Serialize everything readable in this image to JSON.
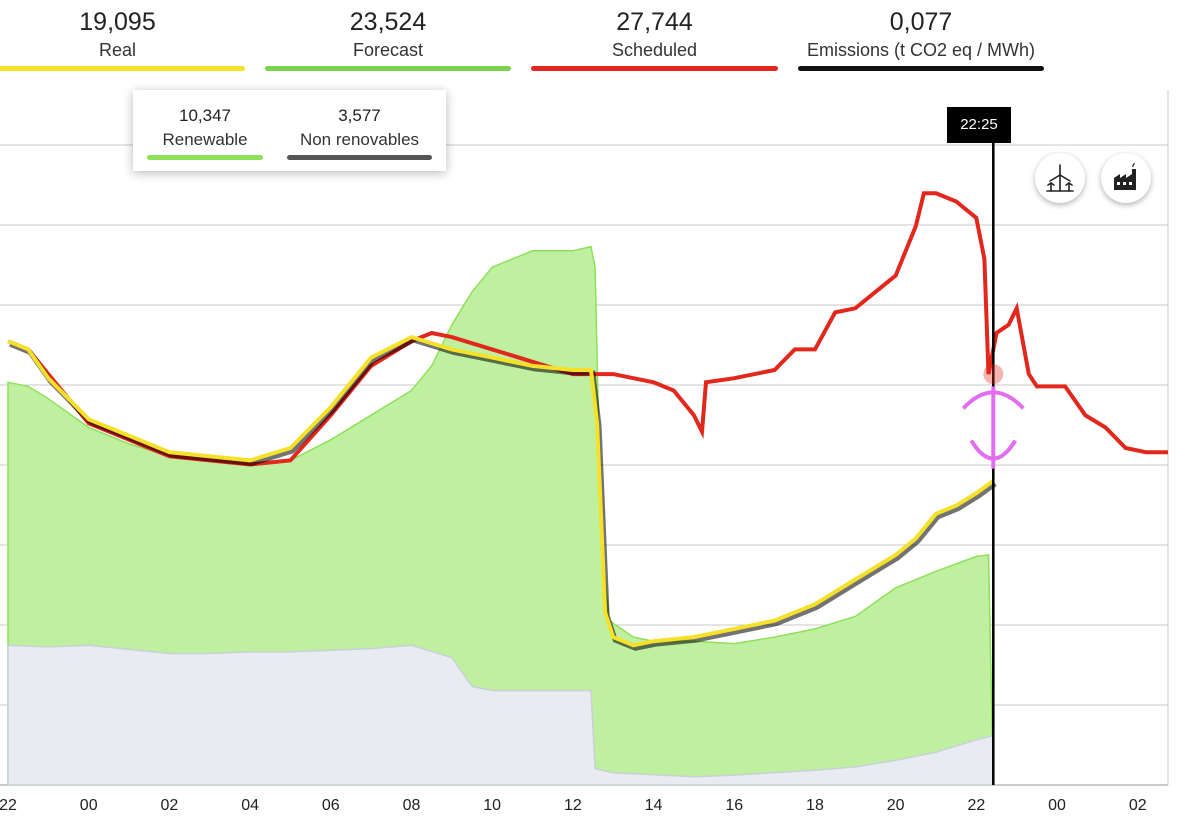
{
  "kpis": {
    "real": {
      "value": "19,095",
      "label": "Real",
      "color": "#f5e02a"
    },
    "forecast": {
      "value": "23,524",
      "label": "Forecast",
      "color": "#7ad34f"
    },
    "scheduled": {
      "value": "27,744",
      "label": "Scheduled",
      "color": "#e2271d"
    },
    "emissions": {
      "value": "0,077",
      "label": "Emissions (t CO2 eq / MWh)",
      "color": "#111111"
    }
  },
  "legend": {
    "renewable": {
      "value": "10,347",
      "label": "Renewable",
      "color": "#8ee05a"
    },
    "non_renewable": {
      "value": "3,577",
      "label": "Non renovables",
      "color": "#555555"
    }
  },
  "cursor": {
    "time_label": "22:25"
  },
  "buttons": {
    "wind_icon": "wind-turbine-icon",
    "factory_icon": "factory-icon"
  },
  "chart_data": {
    "type": "line",
    "x_tick_labels": [
      "22",
      "00",
      "02",
      "04",
      "06",
      "08",
      "10",
      "12",
      "14",
      "16",
      "18",
      "20",
      "22",
      "00",
      "02"
    ],
    "x_unit": "hours from previous day 22:00",
    "xlim": [
      0,
      28.75
    ],
    "ylim": [
      0,
      8.7
    ],
    "grid": true,
    "cursor_x": 24.42,
    "series": [
      {
        "name": "Scheduled",
        "color": "#e2271d",
        "points": [
          [
            0,
            5.4
          ],
          [
            0.5,
            5.3
          ],
          [
            1,
            5.0
          ],
          [
            2,
            4.4
          ],
          [
            3,
            4.2
          ],
          [
            4,
            4.0
          ],
          [
            5,
            3.95
          ],
          [
            6,
            3.9
          ],
          [
            7,
            3.95
          ],
          [
            8,
            4.5
          ],
          [
            9,
            5.1
          ],
          [
            10,
            5.4
          ],
          [
            10.5,
            5.5
          ],
          [
            11,
            5.45
          ],
          [
            12,
            5.3
          ],
          [
            13,
            5.15
          ],
          [
            14,
            5.0
          ],
          [
            14.6,
            5.0
          ],
          [
            15,
            5.0
          ],
          [
            15.5,
            4.95
          ],
          [
            16,
            4.9
          ],
          [
            16.5,
            4.8
          ],
          [
            17,
            4.5
          ],
          [
            17.2,
            4.3
          ],
          [
            17.3,
            4.9
          ],
          [
            18,
            4.95
          ],
          [
            19,
            5.05
          ],
          [
            19.5,
            5.3
          ],
          [
            20,
            5.3
          ],
          [
            20.5,
            5.75
          ],
          [
            21,
            5.8
          ],
          [
            22,
            6.2
          ],
          [
            22.5,
            6.8
          ],
          [
            22.7,
            7.2
          ],
          [
            23,
            7.2
          ],
          [
            23.5,
            7.1
          ],
          [
            24,
            6.9
          ],
          [
            24.2,
            6.4
          ],
          [
            24.3,
            5.0
          ],
          [
            24.5,
            5.5
          ],
          [
            24.8,
            5.6
          ],
          [
            25.0,
            5.8
          ],
          [
            25.3,
            5.0
          ],
          [
            25.5,
            4.85
          ],
          [
            25.8,
            4.85
          ],
          [
            26.2,
            4.85
          ],
          [
            26.7,
            4.5
          ],
          [
            27.2,
            4.35
          ],
          [
            27.7,
            4.1
          ],
          [
            28.2,
            4.05
          ],
          [
            28.75,
            4.05
          ]
        ]
      },
      {
        "name": "Real",
        "color": "#f5e02a",
        "points": [
          [
            0,
            5.4
          ],
          [
            0.5,
            5.3
          ],
          [
            1,
            4.95
          ],
          [
            2,
            4.45
          ],
          [
            3,
            4.25
          ],
          [
            4,
            4.05
          ],
          [
            5,
            4.0
          ],
          [
            6,
            3.95
          ],
          [
            7,
            4.1
          ],
          [
            8,
            4.6
          ],
          [
            9,
            5.2
          ],
          [
            10,
            5.45
          ],
          [
            11,
            5.3
          ],
          [
            12,
            5.2
          ],
          [
            13,
            5.1
          ],
          [
            14,
            5.05
          ],
          [
            14.45,
            5.05
          ],
          [
            14.6,
            4.4
          ],
          [
            14.8,
            2.1
          ],
          [
            15,
            1.8
          ],
          [
            15.5,
            1.7
          ],
          [
            16,
            1.75
          ],
          [
            17,
            1.8
          ],
          [
            18,
            1.9
          ],
          [
            19,
            2.0
          ],
          [
            20,
            2.2
          ],
          [
            21,
            2.5
          ],
          [
            22,
            2.8
          ],
          [
            22.5,
            3.0
          ],
          [
            23,
            3.3
          ],
          [
            23.5,
            3.4
          ],
          [
            24,
            3.55
          ],
          [
            24.42,
            3.7
          ]
        ]
      },
      {
        "name": "Renewable",
        "color": "#8ee05a",
        "points": [
          [
            0,
            4.9
          ],
          [
            0.5,
            4.85
          ],
          [
            1,
            4.7
          ],
          [
            2,
            4.35
          ],
          [
            3,
            4.15
          ],
          [
            4,
            4.0
          ],
          [
            5,
            3.95
          ],
          [
            6,
            3.9
          ],
          [
            7,
            3.95
          ],
          [
            8,
            4.2
          ],
          [
            9,
            4.5
          ],
          [
            10,
            4.8
          ],
          [
            10.5,
            5.1
          ],
          [
            11,
            5.6
          ],
          [
            11.5,
            6.0
          ],
          [
            12,
            6.3
          ],
          [
            13,
            6.5
          ],
          [
            14,
            6.5
          ],
          [
            14.45,
            6.55
          ],
          [
            14.55,
            6.3
          ],
          [
            14.7,
            3.0
          ],
          [
            14.9,
            2.0
          ],
          [
            15.5,
            1.8
          ],
          [
            16,
            1.75
          ],
          [
            17,
            1.75
          ],
          [
            18,
            1.72
          ],
          [
            19,
            1.8
          ],
          [
            20,
            1.9
          ],
          [
            21,
            2.05
          ],
          [
            22,
            2.4
          ],
          [
            23,
            2.6
          ],
          [
            24,
            2.78
          ],
          [
            24.3,
            2.8
          ],
          [
            24.42,
            0
          ]
        ]
      },
      {
        "name": "Non renovables",
        "color": "#d8dde3",
        "points": [
          [
            0,
            1.7
          ],
          [
            1,
            1.68
          ],
          [
            2,
            1.7
          ],
          [
            3,
            1.65
          ],
          [
            4,
            1.6
          ],
          [
            5,
            1.6
          ],
          [
            6,
            1.62
          ],
          [
            7,
            1.62
          ],
          [
            8,
            1.64
          ],
          [
            9,
            1.66
          ],
          [
            10,
            1.7
          ],
          [
            11,
            1.55
          ],
          [
            11.5,
            1.2
          ],
          [
            12,
            1.15
          ],
          [
            13,
            1.15
          ],
          [
            14,
            1.15
          ],
          [
            14.45,
            1.15
          ],
          [
            14.55,
            0.2
          ],
          [
            15,
            0.15
          ],
          [
            17,
            0.1
          ],
          [
            18,
            0.12
          ],
          [
            19,
            0.15
          ],
          [
            20,
            0.18
          ],
          [
            21,
            0.22
          ],
          [
            22,
            0.3
          ],
          [
            23,
            0.4
          ],
          [
            24,
            0.55
          ],
          [
            24.4,
            0.6
          ],
          [
            24.42,
            0
          ]
        ]
      }
    ]
  }
}
